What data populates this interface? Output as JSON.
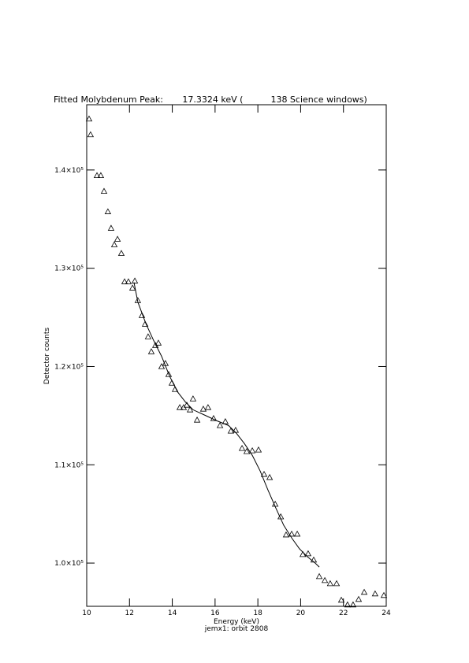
{
  "chart_data": {
    "type": "scatter",
    "title": "Fitted Molybdenum Peak:       17.3324 keV (          138 Science windows)",
    "xlabel": "Energy (keV)",
    "subtitle": "jemx1: orbit 2808",
    "ylabel": "Detector counts",
    "xlim": [
      10,
      24
    ],
    "xticks": [
      10,
      12,
      14,
      16,
      18,
      20,
      22,
      24
    ],
    "ylim": [
      95600,
      146640
    ],
    "yticks": [
      {
        "value": 100000,
        "label": "1.0×10⁵"
      },
      {
        "value": 110000,
        "label": "1.1×10⁵"
      },
      {
        "value": 120000,
        "label": "1.2×10⁵"
      },
      {
        "value": 130000,
        "label": "1.3×10⁵"
      },
      {
        "value": 140000,
        "label": "1.4×10⁵"
      }
    ],
    "color": "#000000",
    "series": [
      {
        "marker": "triangle",
        "x": [
          10.11,
          10.18,
          10.48,
          10.66,
          10.81,
          10.99,
          11.14,
          11.29,
          11.44,
          11.62,
          11.77,
          11.95,
          12.14,
          12.25,
          12.39,
          12.58,
          12.73,
          12.87,
          13.02,
          13.21,
          13.35,
          13.5,
          13.68,
          13.83,
          13.98,
          14.13,
          14.35,
          14.53,
          14.68,
          14.83,
          14.97,
          15.16,
          15.45,
          15.67,
          15.93,
          16.23,
          16.48,
          16.74,
          16.96,
          17.26,
          17.48,
          17.74,
          18.03,
          18.29,
          18.55,
          18.81,
          19.07,
          19.32,
          19.58,
          19.84,
          20.1,
          20.35,
          20.61,
          20.87,
          21.13,
          21.38,
          21.68,
          21.9,
          22.19,
          22.45,
          22.71,
          22.97,
          23.48,
          23.89
        ],
        "values": [
          145200,
          143600,
          139440,
          139440,
          137840,
          135760,
          134080,
          132400,
          132960,
          131520,
          128640,
          128640,
          128000,
          128720,
          126720,
          125200,
          124320,
          123040,
          121520,
          122160,
          122400,
          120000,
          120320,
          119200,
          118320,
          117680,
          115840,
          115840,
          116080,
          115600,
          116720,
          114560,
          115680,
          115840,
          114720,
          114000,
          114400,
          113440,
          113520,
          111680,
          111360,
          111440,
          111520,
          109040,
          108720,
          106000,
          104720,
          102880,
          102960,
          102960,
          100880,
          100960,
          100320,
          98640,
          98240,
          97920,
          97920,
          96240,
          95760,
          95760,
          96320,
          97040,
          96880,
          96720
        ]
      },
      {
        "marker": "line",
        "x": [
          12.21,
          12.39,
          12.76,
          13.13,
          13.5,
          13.87,
          14.24,
          14.61,
          14.97,
          15.53,
          16.08,
          16.63,
          17.0,
          17.37,
          17.74,
          18.11,
          18.47,
          18.84,
          19.21,
          19.58,
          19.95,
          20.32,
          20.68,
          20.87
        ],
        "values": [
          128560,
          126560,
          124400,
          122640,
          121040,
          119040,
          117440,
          116400,
          115600,
          115040,
          114480,
          114000,
          113200,
          112160,
          110960,
          109360,
          107440,
          105600,
          103840,
          102560,
          101440,
          100640,
          100000,
          99600
        ]
      }
    ]
  }
}
